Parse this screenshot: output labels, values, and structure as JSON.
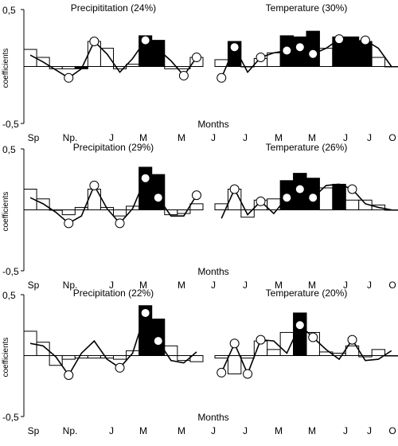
{
  "chart_data": {
    "type": "bar",
    "ylabel": "coefficients",
    "xlabel": "Months",
    "ylim": [
      -0.5,
      0.5
    ],
    "yticks": [
      "0,5",
      "-0,5"
    ],
    "month_labels": [
      "Sp",
      "Np.",
      "J",
      "M",
      "M",
      "J",
      "O"
    ],
    "colors": {
      "significant_bar": "#000000",
      "bar": "#ffffff",
      "line": "#000000",
      "marker": "#ffffff"
    },
    "legend": "none",
    "grid": false,
    "months_per_panel": 14,
    "rows": [
      {
        "panels": [
          {
            "title": "Precipititation (24%)",
            "bars": [
              0.15,
              0.08,
              -0.02,
              -0.02,
              -0.02,
              0.22,
              0.16,
              -0.02,
              0.02,
              0.27,
              0.23,
              -0.02,
              -0.02,
              0.08
            ],
            "significant": [
              false,
              false,
              false,
              false,
              true,
              false,
              false,
              false,
              false,
              true,
              true,
              false,
              false,
              false
            ],
            "line": [
              0.1,
              0.04,
              -0.03,
              -0.1,
              -0.02,
              0.22,
              0.11,
              -0.05,
              0.07,
              0.23,
              0.15,
              0.05,
              -0.08,
              0.08
            ],
            "markers": [
              false,
              false,
              false,
              true,
              false,
              true,
              false,
              false,
              false,
              true,
              false,
              false,
              true,
              true
            ]
          },
          {
            "title": "Temperature (30%)",
            "bars": [
              0.06,
              0.22,
              0.0,
              0.07,
              0.12,
              0.27,
              0.26,
              0.31,
              0.16,
              0.26,
              0.26,
              0.22,
              0.08,
              0.0
            ],
            "significant": [
              false,
              true,
              false,
              false,
              false,
              true,
              true,
              true,
              false,
              true,
              true,
              true,
              false,
              false
            ],
            "line": [
              -0.1,
              0.17,
              -0.05,
              0.08,
              0.12,
              0.14,
              0.17,
              0.11,
              0.16,
              0.24,
              0.22,
              0.23,
              0.16,
              0.0
            ],
            "markers": [
              true,
              true,
              false,
              true,
              false,
              true,
              true,
              true,
              false,
              true,
              false,
              true,
              false,
              false
            ]
          }
        ]
      },
      {
        "panels": [
          {
            "title": "Precipitation (29%)",
            "bars": [
              0.17,
              0.09,
              0.0,
              -0.04,
              0.02,
              0.17,
              0.02,
              -0.05,
              0.03,
              0.35,
              0.29,
              -0.04,
              -0.03,
              0.05
            ],
            "significant": [
              false,
              false,
              false,
              false,
              false,
              false,
              false,
              false,
              false,
              true,
              true,
              false,
              false,
              false
            ],
            "line": [
              0.1,
              0.05,
              -0.02,
              -0.11,
              -0.05,
              0.2,
              0.01,
              -0.11,
              0.01,
              0.26,
              0.1,
              -0.05,
              -0.05,
              0.12
            ],
            "markers": [
              false,
              false,
              false,
              true,
              false,
              true,
              false,
              true,
              false,
              true,
              true,
              false,
              false,
              true
            ]
          },
          {
            "title": "Temperature (26%)",
            "bars": [
              0.05,
              0.17,
              -0.06,
              0.08,
              0.09,
              0.24,
              0.3,
              0.26,
              0.18,
              0.21,
              0.08,
              0.08,
              0.04,
              0.0
            ],
            "significant": [
              false,
              false,
              false,
              false,
              false,
              true,
              true,
              true,
              false,
              true,
              false,
              false,
              false,
              false
            ],
            "line": [
              -0.07,
              0.17,
              -0.04,
              0.07,
              -0.03,
              0.1,
              0.17,
              0.1,
              0.2,
              0.21,
              0.17,
              0.05,
              0.02,
              0.0
            ],
            "markers": [
              false,
              true,
              false,
              true,
              false,
              true,
              true,
              true,
              false,
              false,
              true,
              false,
              false,
              false
            ]
          }
        ]
      },
      {
        "panels": [
          {
            "title": "Precipitation (22%)",
            "bars": [
              0.2,
              0.11,
              -0.08,
              -0.03,
              -0.02,
              -0.02,
              -0.02,
              -0.03,
              0.04,
              0.41,
              0.3,
              0.08,
              -0.04,
              -0.05
            ],
            "significant": [
              false,
              false,
              false,
              false,
              false,
              false,
              false,
              false,
              false,
              true,
              true,
              false,
              false,
              false
            ],
            "line": [
              0.1,
              0.08,
              -0.01,
              -0.16,
              0.02,
              0.12,
              -0.03,
              -0.1,
              0.02,
              0.35,
              0.12,
              -0.04,
              -0.06,
              0.03
            ],
            "markers": [
              false,
              false,
              false,
              true,
              false,
              false,
              false,
              true,
              false,
              true,
              true,
              false,
              false,
              false
            ]
          },
          {
            "title": "Temperature (20%)",
            "bars": [
              -0.02,
              -0.15,
              -0.02,
              0.12,
              0.05,
              0.19,
              0.35,
              0.19,
              0.03,
              0.02,
              0.08,
              -0.01,
              0.05,
              0.0
            ],
            "significant": [
              false,
              false,
              false,
              false,
              false,
              false,
              true,
              false,
              false,
              false,
              false,
              false,
              false,
              false
            ],
            "line": [
              -0.14,
              0.1,
              -0.15,
              0.13,
              0.12,
              0.02,
              0.25,
              0.15,
              0.05,
              -0.03,
              0.13,
              -0.04,
              -0.03,
              0.04
            ],
            "markers": [
              true,
              true,
              true,
              true,
              false,
              false,
              true,
              true,
              false,
              false,
              true,
              false,
              false,
              false
            ]
          }
        ]
      }
    ]
  }
}
